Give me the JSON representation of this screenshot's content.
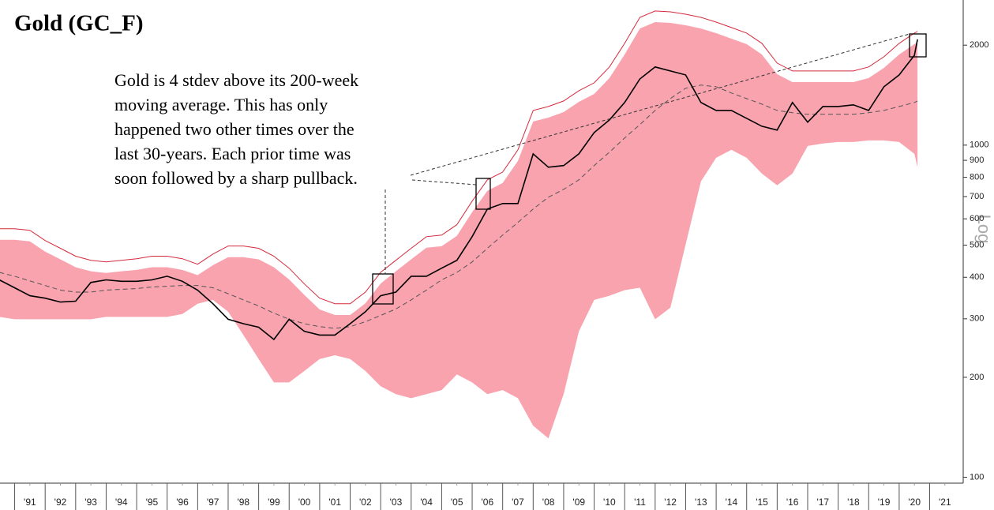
{
  "chart_data": {
    "type": "line",
    "title": "Gold (GC_F)",
    "annotation": [
      "Gold is 4 stdev above its 200-week",
      "moving average. This has only",
      "happened two other times over the",
      "last 30-years. Each prior time was",
      "soon followed by a sharp pullback."
    ],
    "scale_label": "Log",
    "log_scale": true,
    "fill_between": [
      3,
      4
    ],
    "x": [
      1990.5,
      1991,
      1991.5,
      1992,
      1992.5,
      1993,
      1993.5,
      1994,
      1994.5,
      1995,
      1995.5,
      1996,
      1996.5,
      1997,
      1997.5,
      1998,
      1998.5,
      1999,
      1999.5,
      2000,
      2000.5,
      2001,
      2001.5,
      2002,
      2002.5,
      2003,
      2003.5,
      2004,
      2004.5,
      2005,
      2005.5,
      2006,
      2006.5,
      2007,
      2007.5,
      2008,
      2008.5,
      2009,
      2009.5,
      2010,
      2010.5,
      2011,
      2011.5,
      2012,
      2012.5,
      2013,
      2013.5,
      2014,
      2014.5,
      2015,
      2015.5,
      2016,
      2016.5,
      2017,
      2017.5,
      2018,
      2018.5,
      2019,
      2019.5,
      2020,
      2020.5,
      2020.6
    ],
    "series": [
      {
        "color": "#000000",
        "values": [
          393,
          372,
          352,
          346,
          337,
          339,
          386,
          393,
          389,
          389,
          393,
          403,
          389,
          366,
          333,
          299,
          290,
          283,
          260,
          299,
          275,
          268,
          268,
          290,
          315,
          352,
          361,
          403,
          403,
          426,
          450,
          530,
          642,
          667,
          667,
          941,
          858,
          868,
          941,
          1091,
          1191,
          1344,
          1582,
          1719,
          1672,
          1627,
          1344,
          1272,
          1272,
          1204,
          1140,
          1110,
          1344,
          1172,
          1307,
          1307,
          1322,
          1272,
          1499,
          1627,
          1865,
          2081
        ]
      },
      {
        "color": "#555555",
        "dashed": true,
        "values": [
          414,
          403,
          390,
          378,
          366,
          361,
          361,
          366,
          368,
          370,
          374,
          376,
          378,
          378,
          372,
          357,
          342,
          328,
          312,
          299,
          290,
          284,
          281,
          284,
          294,
          307,
          321,
          342,
          366,
          393,
          414,
          445,
          489,
          536,
          585,
          642,
          697,
          736,
          786,
          868,
          952,
          1051,
          1153,
          1272,
          1381,
          1483,
          1516,
          1499,
          1435,
          1381,
          1329,
          1272,
          1252,
          1238,
          1238,
          1238,
          1238,
          1252,
          1272,
          1307,
          1344,
          1358
        ]
      },
      {
        "color": "#d42a3c",
        "values": [
          560,
          560,
          554,
          516,
          489,
          463,
          450,
          445,
          450,
          455,
          463,
          463,
          455,
          438,
          470,
          497,
          497,
          489,
          463,
          426,
          382,
          346,
          333,
          333,
          361,
          414,
          450,
          489,
          530,
          536,
          576,
          678,
          786,
          830,
          968,
          1272,
          1307,
          1358,
          1458,
          1540,
          1719,
          2025,
          2425,
          2534,
          2520,
          2479,
          2425,
          2347,
          2259,
          2175,
          2025,
          1766,
          1672,
          1672,
          1672,
          1672,
          1672,
          1719,
          1845,
          2025,
          2175,
          2198
        ]
      },
      {
        "color": "#f8a3ae",
        "values": [
          519,
          519,
          513,
          478,
          453,
          429,
          417,
          412,
          417,
          421,
          429,
          429,
          421,
          406,
          435,
          460,
          460,
          453,
          429,
          394,
          354,
          320,
          308,
          308,
          334,
          383,
          417,
          453,
          491,
          496,
          533,
          628,
          728,
          769,
          896,
          1178,
          1210,
          1257,
          1350,
          1426,
          1592,
          1875,
          2245,
          2346,
          2333,
          2295,
          2245,
          2173,
          2092,
          2014,
          1875,
          1635,
          1548,
          1548,
          1548,
          1548,
          1548,
          1592,
          1708,
          1875,
          2014,
          2035
        ]
      },
      {
        "color": "#f8a3ae",
        "values": [
          304,
          299,
          299,
          299,
          299,
          299,
          299,
          304,
          304,
          304,
          304,
          304,
          310,
          333,
          342,
          315,
          268,
          227,
          193,
          193,
          209,
          227,
          233,
          227,
          209,
          188,
          178,
          173,
          178,
          183,
          204,
          193,
          178,
          183,
          173,
          143,
          131,
          178,
          275,
          342,
          352,
          366,
          372,
          299,
          324,
          502,
          778,
          916,
          968,
          916,
          821,
          757,
          821,
          994,
          1011,
          1022,
          1022,
          1033,
          1033,
          1022,
          941,
          858
        ]
      }
    ],
    "xlim": [
      1990.52,
      2022.1
    ],
    "xticks": [
      {
        "value": 1991.5,
        "label": "'91"
      },
      {
        "value": 1992.5,
        "label": "'92"
      },
      {
        "value": 1993.5,
        "label": "'93"
      },
      {
        "value": 1994.5,
        "label": "'94"
      },
      {
        "value": 1995.5,
        "label": "'95"
      },
      {
        "value": 1996.5,
        "label": "'96"
      },
      {
        "value": 1997.5,
        "label": "'97"
      },
      {
        "value": 1998.5,
        "label": "'98"
      },
      {
        "value": 1999.5,
        "label": "'99"
      },
      {
        "value": 2000.5,
        "label": "'00"
      },
      {
        "value": 2001.5,
        "label": "'01"
      },
      {
        "value": 2002.5,
        "label": "'02"
      },
      {
        "value": 2003.5,
        "label": "'03"
      },
      {
        "value": 2004.5,
        "label": "'04"
      },
      {
        "value": 2005.5,
        "label": "'05"
      },
      {
        "value": 2006.5,
        "label": "'06"
      },
      {
        "value": 2007.5,
        "label": "'07"
      },
      {
        "value": 2008.5,
        "label": "'08"
      },
      {
        "value": 2009.5,
        "label": "'09"
      },
      {
        "value": 2010.5,
        "label": "'10"
      },
      {
        "value": 2011.5,
        "label": "'11"
      },
      {
        "value": 2012.5,
        "label": "'12"
      },
      {
        "value": 2013.5,
        "label": "'13"
      },
      {
        "value": 2014.5,
        "label": "'14"
      },
      {
        "value": 2015.5,
        "label": "'15"
      },
      {
        "value": 2016.5,
        "label": "'16"
      },
      {
        "value": 2017.5,
        "label": "'17"
      },
      {
        "value": 2018.5,
        "label": "'18"
      },
      {
        "value": 2019.5,
        "label": "'19"
      },
      {
        "value": 2020.5,
        "label": "'20"
      },
      {
        "value": 2021.5,
        "label": "'21"
      }
    ],
    "ylim": [
      96,
      2735
    ],
    "yticks": [
      100,
      200,
      300,
      400,
      500,
      600,
      700,
      800,
      900,
      1000,
      2000
    ]
  }
}
